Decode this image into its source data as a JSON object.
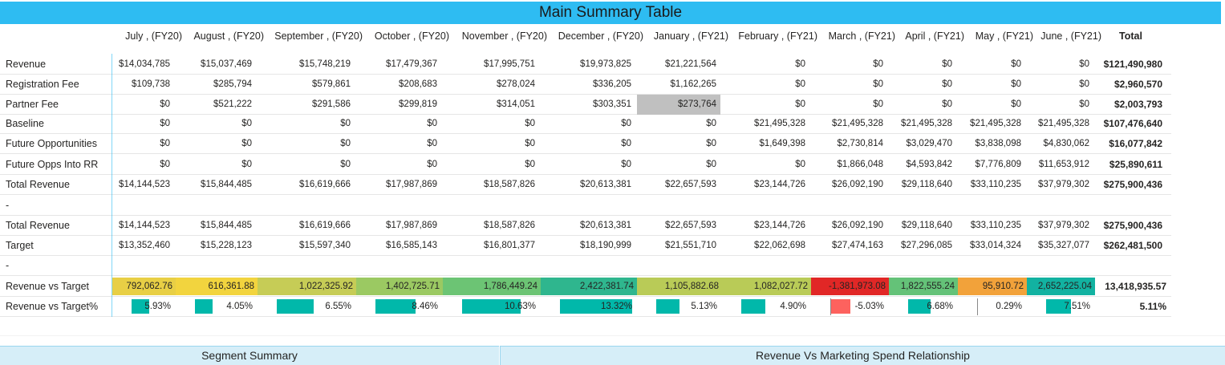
{
  "title": "Main Summary Table",
  "columns": [
    "July , (FY20)",
    "August , (FY20)",
    "September , (FY20)",
    "October , (FY20)",
    "November , (FY20)",
    "December , (FY20)",
    "January , (FY21)",
    "February , (FY21)",
    "March , (FY21)",
    "April , (FY21)",
    "May , (FY21)",
    "June , (FY21)",
    "Total"
  ],
  "rows": [
    {
      "label": "Revenue",
      "values": [
        "$14,034,785",
        "$15,037,469",
        "$15,748,219",
        "$17,479,367",
        "$17,995,751",
        "$19,973,825",
        "$21,221,564",
        "$0",
        "$0",
        "$0",
        "$0",
        "$0",
        "$121,490,980"
      ]
    },
    {
      "label": "Registration Fee",
      "values": [
        "$109,738",
        "$285,794",
        "$579,861",
        "$208,683",
        "$278,024",
        "$336,205",
        "$1,162,265",
        "$0",
        "$0",
        "$0",
        "$0",
        "$0",
        "$2,960,570"
      ]
    },
    {
      "label": "Partner Fee",
      "values": [
        "$0",
        "$521,222",
        "$291,586",
        "$299,819",
        "$314,051",
        "$303,351",
        "$273,764",
        "$0",
        "$0",
        "$0",
        "$0",
        "$0",
        "$2,003,793"
      ]
    },
    {
      "label": "Baseline",
      "values": [
        "$0",
        "$0",
        "$0",
        "$0",
        "$0",
        "$0",
        "$0",
        "$21,495,328",
        "$21,495,328",
        "$21,495,328",
        "$21,495,328",
        "$21,495,328",
        "$107,476,640"
      ]
    },
    {
      "label": "Future Opportunities",
      "values": [
        "$0",
        "$0",
        "$0",
        "$0",
        "$0",
        "$0",
        "$0",
        "$1,649,398",
        "$2,730,814",
        "$3,029,470",
        "$3,838,098",
        "$4,830,062",
        "$16,077,842"
      ]
    },
    {
      "label": "Future Opps Into RR",
      "values": [
        "$0",
        "$0",
        "$0",
        "$0",
        "$0",
        "$0",
        "$0",
        "$0",
        "$1,866,048",
        "$4,593,842",
        "$7,776,809",
        "$11,653,912",
        "$25,890,611"
      ]
    },
    {
      "label": "Total Revenue",
      "values": [
        "$14,144,523",
        "$15,844,485",
        "$16,619,666",
        "$17,987,869",
        "$18,587,826",
        "$20,613,381",
        "$22,657,593",
        "$23,144,726",
        "$26,092,190",
        "$29,118,640",
        "$33,110,235",
        "$37,979,302",
        "$275,900,436"
      ]
    },
    {
      "label": "-",
      "values": [
        "",
        "",
        "",
        "",
        "",
        "",
        "",
        "",
        "",
        "",
        "",
        "",
        ""
      ]
    },
    {
      "label": "Total Revenue",
      "values": [
        "$14,144,523",
        "$15,844,485",
        "$16,619,666",
        "$17,987,869",
        "$18,587,826",
        "$20,613,381",
        "$22,657,593",
        "$23,144,726",
        "$26,092,190",
        "$29,118,640",
        "$33,110,235",
        "$37,979,302",
        "$275,900,436"
      ]
    },
    {
      "label": "Target",
      "values": [
        "$13,352,460",
        "$15,228,123",
        "$15,597,340",
        "$16,585,143",
        "$16,801,377",
        "$18,190,999",
        "$21,551,710",
        "$22,062,698",
        "$27,474,163",
        "$27,296,085",
        "$33,014,324",
        "$35,327,077",
        "$262,481,500"
      ]
    },
    {
      "label": "-",
      "values": [
        "",
        "",
        "",
        "",
        "",
        "",
        "",
        "",
        "",
        "",
        "",
        "",
        ""
      ]
    }
  ],
  "highlighted_cell": {
    "row": 2,
    "col": 6,
    "color": "#c0c0c0"
  },
  "rev_vs_target": {
    "label": "Revenue vs Target",
    "values": [
      "792,062.76",
      "616,361.88",
      "1,022,325.92",
      "1,402,725.71",
      "1,786,449.24",
      "2,422,381.74",
      "1,105,882.68",
      "1,082,027.72",
      "-1,381,973.08",
      "1,822,555.24",
      "95,910.72",
      "2,652,225.04"
    ],
    "colors": [
      "#e8cf45",
      "#f2d43e",
      "#c6cc56",
      "#9bc962",
      "#6cc474",
      "#2fb68e",
      "#b9cb57",
      "#b9cb57",
      "#e12726",
      "#64c278",
      "#f2a23a",
      "#12b2a1"
    ],
    "total": "13,418,935.57"
  },
  "rev_vs_target_pct": {
    "label": "Revenue vs Target%",
    "values": [
      "5.93%",
      "4.05%",
      "6.55%",
      "8.46%",
      "10.63%",
      "13.32%",
      "5.13%",
      "4.90%",
      "-5.03%",
      "6.68%",
      "0.29%",
      "7.51%"
    ],
    "fractions": [
      0.059,
      0.041,
      0.066,
      0.085,
      0.106,
      0.133,
      0.051,
      0.049,
      -0.05,
      0.067,
      0.003,
      0.075
    ],
    "positive_color": "#01b8aa",
    "negative_color": "#fd625e",
    "total": "5.11%"
  },
  "bottom_tabs": [
    "Segment Summary",
    "Revenue Vs Marketing Spend Relationship"
  ]
}
